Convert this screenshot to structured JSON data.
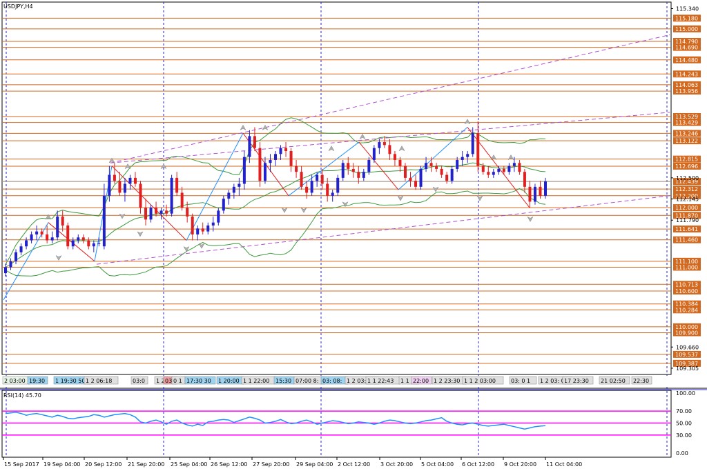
{
  "window": {
    "symbol_label": "USDJPY,H4"
  },
  "indicator": {
    "label": "RSI(14) 45.70",
    "levels": [
      "100.00",
      "70.00",
      "50.00",
      "30.00",
      "0.00"
    ]
  },
  "colors": {
    "bull": "#2222cc",
    "bear": "#e02020",
    "level_line": "#d2691e",
    "channel": "#b050d0",
    "bollinger": "#3c9a3c",
    "rsi": "#1e90ff",
    "rsi_levels": "#ff00ff",
    "session_grid": "#2020cc"
  },
  "chart_data": {
    "type": "candlestick",
    "price_ticks": [
      "115.340",
      "109.660",
      "109.305",
      "111.790",
      "112.145",
      "112.500"
    ],
    "level_badges": [
      {
        "value": "115.180",
        "y": 115.18
      },
      {
        "value": "115.000",
        "y": 115.0
      },
      {
        "value": "114.790",
        "y": 114.79
      },
      {
        "value": "114.690",
        "y": 114.69
      },
      {
        "value": "114.480",
        "y": 114.48
      },
      {
        "value": "114.243",
        "y": 114.243
      },
      {
        "value": "114.063",
        "y": 114.063
      },
      {
        "value": "113.956",
        "y": 113.956
      },
      {
        "value": "113.529",
        "y": 113.529
      },
      {
        "value": "113.429",
        "y": 113.429
      },
      {
        "value": "113.246",
        "y": 113.246
      },
      {
        "value": "113.122",
        "y": 113.122
      },
      {
        "value": "112.815",
        "y": 112.815
      },
      {
        "value": "112.696",
        "y": 112.696
      },
      {
        "value": "112.439",
        "y": 112.439
      },
      {
        "value": "112.312",
        "y": 112.312
      },
      {
        "value": "112.200",
        "y": 112.2
      },
      {
        "value": "112.000",
        "y": 112.0
      },
      {
        "value": "111.870",
        "y": 111.87
      },
      {
        "value": "111.641",
        "y": 111.641
      },
      {
        "value": "111.460",
        "y": 111.46
      },
      {
        "value": "111.100",
        "y": 111.1
      },
      {
        "value": "111.000",
        "y": 111.0
      },
      {
        "value": "110.713",
        "y": 110.713
      },
      {
        "value": "110.600",
        "y": 110.6
      },
      {
        "value": "110.384",
        "y": 110.384
      },
      {
        "value": "110.284",
        "y": 110.284
      },
      {
        "value": "110.000",
        "y": 110.0
      },
      {
        "value": "109.900",
        "y": 109.9
      },
      {
        "value": "109.537",
        "y": 109.537
      },
      {
        "value": "109.387",
        "y": 109.387
      }
    ],
    "time_labels": [
      "15 Sep 2017",
      "19 Sep 04:00",
      "20 Sep 12:00",
      "21 Sep 20:00",
      "25 Sep 04:00",
      "26 Sep 12:00",
      "27 Sep 20:00",
      "29 Sep 04:00",
      "2 Oct 12:00",
      "3 Oct 20:00",
      "5 Oct 04:00",
      "6 Oct 12:00",
      "9 Oct 20:00",
      "11 Oct 04:00"
    ],
    "session_labels": [
      "2 03:00",
      "19:30",
      "1 19:30 50",
      "1 2 06:18",
      "03:0",
      "1 2",
      "03:",
      "0 1",
      "17:30 30",
      "1 20:00",
      "1 1 22:00",
      "15:30",
      "07:00 8:",
      "03: 08:",
      "1 2 03: 0",
      "1 1 22:43",
      "1 1 2",
      "22:00",
      "1 2 23:30",
      "1 1 2 03:00",
      "03: 0 1",
      "1 2 03: 0",
      "17 23:30",
      "21 02:50",
      "22:30"
    ],
    "candles": [
      [
        110.9,
        111.05,
        110.85,
        111.0
      ],
      [
        111.0,
        111.15,
        110.95,
        111.1
      ],
      [
        111.1,
        111.3,
        111.05,
        111.25
      ],
      [
        111.25,
        111.4,
        111.2,
        111.35
      ],
      [
        111.35,
        111.5,
        111.3,
        111.45
      ],
      [
        111.45,
        111.6,
        111.4,
        111.55
      ],
      [
        111.55,
        111.7,
        111.45,
        111.6
      ],
      [
        111.6,
        111.65,
        111.5,
        111.55
      ],
      [
        111.55,
        111.7,
        111.4,
        111.45
      ],
      [
        111.45,
        111.6,
        111.4,
        111.5
      ],
      [
        111.5,
        111.95,
        111.45,
        111.85
      ],
      [
        111.85,
        111.95,
        111.6,
        111.7
      ],
      [
        111.7,
        111.75,
        111.3,
        111.35
      ],
      [
        111.35,
        111.5,
        111.3,
        111.45
      ],
      [
        111.45,
        111.55,
        111.4,
        111.5
      ],
      [
        111.5,
        111.55,
        111.4,
        111.45
      ],
      [
        111.45,
        111.5,
        111.3,
        111.35
      ],
      [
        111.35,
        111.45,
        111.25,
        111.4
      ],
      [
        111.4,
        111.5,
        111.35,
        111.4
      ],
      [
        111.35,
        112.4,
        111.3,
        112.2
      ],
      [
        112.2,
        112.7,
        112.1,
        112.55
      ],
      [
        112.55,
        112.75,
        112.4,
        112.45
      ],
      [
        112.45,
        112.6,
        112.2,
        112.25
      ],
      [
        112.25,
        112.5,
        112.1,
        112.4
      ],
      [
        112.4,
        112.55,
        112.3,
        112.5
      ],
      [
        112.5,
        112.6,
        112.35,
        112.4
      ],
      [
        112.4,
        112.45,
        111.9,
        112.0
      ],
      [
        112.0,
        112.15,
        111.7,
        111.8
      ],
      [
        111.8,
        112.05,
        111.75,
        112.0
      ],
      [
        112.0,
        112.1,
        111.85,
        111.9
      ],
      [
        111.9,
        112.0,
        111.8,
        111.95
      ],
      [
        111.95,
        112.05,
        111.85,
        111.9
      ],
      [
        111.9,
        112.55,
        111.85,
        112.5
      ],
      [
        112.5,
        112.6,
        112.2,
        112.25
      ],
      [
        112.25,
        112.35,
        111.95,
        112.0
      ],
      [
        112.0,
        112.1,
        111.75,
        111.85
      ],
      [
        111.85,
        111.9,
        111.45,
        111.55
      ],
      [
        111.55,
        111.7,
        111.45,
        111.65
      ],
      [
        111.65,
        111.75,
        111.55,
        111.6
      ],
      [
        111.6,
        111.75,
        111.55,
        111.7
      ],
      [
        111.7,
        111.85,
        111.6,
        111.75
      ],
      [
        111.75,
        112.0,
        111.7,
        111.95
      ],
      [
        111.95,
        112.2,
        111.9,
        112.15
      ],
      [
        112.15,
        112.3,
        112.05,
        112.25
      ],
      [
        112.25,
        112.4,
        112.15,
        112.35
      ],
      [
        112.35,
        112.5,
        112.2,
        112.4
      ],
      [
        112.4,
        112.95,
        112.3,
        112.85
      ],
      [
        112.85,
        113.3,
        112.75,
        113.2
      ],
      [
        113.2,
        113.35,
        112.95,
        113.0
      ],
      [
        113.0,
        113.1,
        112.35,
        112.45
      ],
      [
        112.45,
        112.85,
        112.4,
        112.75
      ],
      [
        112.75,
        112.9,
        112.6,
        112.8
      ],
      [
        112.8,
        112.95,
        112.7,
        112.9
      ],
      [
        112.9,
        113.05,
        112.8,
        113.0
      ],
      [
        113.0,
        113.1,
        112.85,
        112.95
      ],
      [
        112.95,
        113.0,
        112.6,
        112.7
      ],
      [
        112.7,
        112.8,
        112.5,
        112.6
      ],
      [
        112.6,
        112.7,
        112.3,
        112.35
      ],
      [
        112.35,
        112.45,
        112.15,
        112.25
      ],
      [
        112.25,
        112.55,
        112.2,
        112.45
      ],
      [
        112.45,
        112.6,
        112.35,
        112.55
      ],
      [
        112.55,
        112.65,
        112.3,
        112.4
      ],
      [
        112.4,
        112.5,
        112.1,
        112.2
      ],
      [
        112.2,
        112.3,
        112.1,
        112.25
      ],
      [
        112.25,
        112.55,
        112.2,
        112.5
      ],
      [
        112.5,
        112.8,
        112.45,
        112.75
      ],
      [
        112.75,
        112.85,
        112.55,
        112.65
      ],
      [
        112.65,
        112.75,
        112.5,
        112.6
      ],
      [
        112.6,
        112.7,
        112.4,
        112.5
      ],
      [
        112.5,
        112.65,
        112.45,
        112.6
      ],
      [
        112.6,
        112.85,
        112.55,
        112.8
      ],
      [
        112.8,
        113.05,
        112.75,
        113.0
      ],
      [
        113.0,
        113.15,
        112.9,
        113.1
      ],
      [
        113.1,
        113.2,
        113.0,
        113.05
      ],
      [
        113.05,
        113.15,
        112.8,
        112.9
      ],
      [
        112.9,
        112.95,
        112.7,
        112.8
      ],
      [
        112.8,
        112.85,
        112.6,
        112.7
      ],
      [
        112.7,
        112.75,
        112.45,
        112.5
      ],
      [
        112.5,
        112.6,
        112.35,
        112.45
      ],
      [
        112.45,
        112.55,
        112.3,
        112.35
      ],
      [
        112.35,
        112.7,
        112.3,
        112.65
      ],
      [
        112.65,
        112.85,
        112.6,
        112.75
      ],
      [
        112.75,
        112.85,
        112.6,
        112.7
      ],
      [
        112.7,
        112.75,
        112.6,
        112.65
      ],
      [
        112.65,
        112.7,
        112.5,
        112.55
      ],
      [
        112.55,
        112.6,
        112.4,
        112.45
      ],
      [
        112.45,
        112.7,
        112.4,
        112.65
      ],
      [
        112.65,
        112.85,
        112.6,
        112.8
      ],
      [
        112.8,
        112.95,
        112.7,
        112.85
      ],
      [
        112.85,
        112.95,
        112.75,
        112.9
      ],
      [
        112.9,
        113.35,
        112.85,
        113.25
      ],
      [
        113.25,
        113.45,
        112.6,
        112.7
      ],
      [
        112.7,
        112.75,
        112.55,
        112.6
      ],
      [
        112.6,
        112.7,
        112.5,
        112.55
      ],
      [
        112.55,
        112.65,
        112.5,
        112.6
      ],
      [
        112.6,
        112.7,
        112.55,
        112.65
      ],
      [
        112.65,
        112.7,
        112.55,
        112.6
      ],
      [
        112.6,
        112.75,
        112.55,
        112.7
      ],
      [
        112.7,
        112.85,
        112.6,
        112.75
      ],
      [
        112.75,
        112.8,
        112.55,
        112.6
      ],
      [
        112.6,
        112.65,
        112.25,
        112.35
      ],
      [
        112.35,
        112.45,
        112.0,
        112.1
      ],
      [
        112.1,
        112.4,
        112.05,
        112.35
      ],
      [
        112.35,
        112.45,
        112.15,
        112.2
      ],
      [
        112.2,
        112.5,
        112.15,
        112.44
      ]
    ],
    "rsi_values": [
      66,
      67,
      68,
      66,
      63,
      65,
      66,
      64,
      62,
      60,
      63,
      61,
      58,
      57,
      59,
      60,
      61,
      64,
      63,
      60,
      62,
      64,
      65,
      66,
      64,
      60,
      52,
      50,
      53,
      55,
      52,
      48,
      53,
      55,
      50,
      47,
      45,
      48,
      46,
      52,
      53,
      55,
      56,
      55,
      51,
      54,
      57,
      60,
      58,
      55,
      50,
      51,
      53,
      56,
      52,
      49,
      50,
      53,
      55,
      52,
      48,
      50,
      52,
      54,
      53,
      51,
      49,
      50,
      52,
      51,
      50,
      48,
      50,
      53,
      55,
      54,
      52,
      50,
      49,
      50,
      52,
      54,
      55,
      57,
      59,
      53,
      50,
      48,
      47,
      49,
      50,
      48,
      46,
      45,
      46,
      47,
      48,
      46,
      44,
      42,
      40,
      42,
      44,
      45,
      45.7
    ],
    "ylim": [
      109.2,
      115.45
    ]
  }
}
